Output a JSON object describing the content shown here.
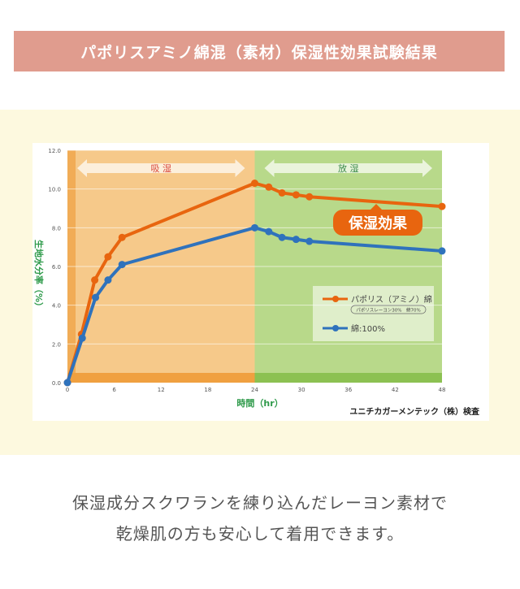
{
  "header": {
    "title": "パポリスアミノ綿混（素材）保湿性効果試験結果"
  },
  "chart_data": {
    "type": "line",
    "xlabel": "時間（hr）",
    "ylabel": "生地水分率（%）",
    "xlim": [
      0,
      48
    ],
    "ylim": [
      0,
      12
    ],
    "xticks": [
      "0",
      "6",
      "12",
      "18",
      "24",
      "30",
      "36",
      "42",
      "48"
    ],
    "yticks": [
      "0.0",
      "2.0",
      "4.0",
      "6.0",
      "8.0",
      "10.0",
      "12.0"
    ],
    "grid": true,
    "legend": "bottom-right",
    "phases": [
      {
        "label": "吸 湿",
        "from": 0,
        "to": 24,
        "color": "#f6c98a"
      },
      {
        "label": "放 湿",
        "from": 24,
        "to": 48,
        "color": "#b8d98a"
      }
    ],
    "annotation": "保湿効果",
    "series": [
      {
        "name": "パポリス（アミノ）綿",
        "sub": "パポリスレーヨン30%　綿70%",
        "color": "#e8650f",
        "x": [
          0,
          1.8,
          3.5,
          5.2,
          7,
          24,
          25.8,
          27.5,
          29.3,
          31,
          48
        ],
        "y": [
          0,
          2.5,
          5.3,
          6.5,
          7.5,
          10.3,
          10.1,
          9.8,
          9.7,
          9.6,
          9.1
        ]
      },
      {
        "name": "綿:100%",
        "color": "#2f72bc",
        "x": [
          0,
          1.9,
          3.6,
          5.2,
          7,
          24,
          25.8,
          27.5,
          29.3,
          31,
          48
        ],
        "y": [
          0,
          2.3,
          4.4,
          5.3,
          6.1,
          8.0,
          7.8,
          7.5,
          7.4,
          7.3,
          6.8
        ]
      }
    ],
    "source": "ユニチカガーメンテック（株）検査"
  },
  "caption": {
    "line1": "保湿成分スクワランを練り込んだレーヨン素材で",
    "line2": "乾燥肌の方も安心して着用できます。"
  }
}
